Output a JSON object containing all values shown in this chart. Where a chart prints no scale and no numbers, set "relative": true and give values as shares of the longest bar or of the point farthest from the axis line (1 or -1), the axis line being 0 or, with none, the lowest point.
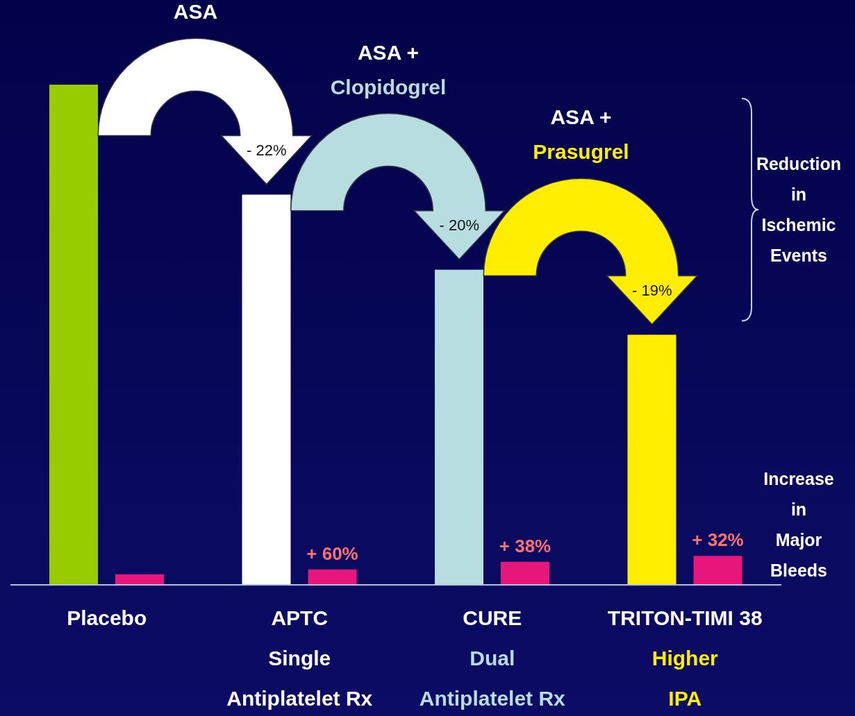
{
  "chart_data": {
    "type": "bar",
    "relative": true,
    "categories": [
      "Placebo",
      "APTC\nSingle\nAntiplatelet Rx",
      "CURE\nDual\nAntiplatelet Rx",
      "TRITON-TIMI 38\nHigher\nIPA"
    ],
    "series": [
      {
        "colors": [
          "#99cc00",
          "#ffffff",
          "#b7dde0",
          "#ffee00"
        ],
        "values": [
          1,
          0.78,
          0.63,
          0.5
        ]
      },
      {
        "color": "#e8157a",
        "values": [
          0.021,
          0.031,
          0.046,
          0.058
        ]
      }
    ],
    "annotations": [
      "ASA",
      "ASA +\nClopidogrel",
      "ASA +\nPrasugrel",
      "- 22%",
      "- 20%",
      "- 19%",
      "+ 60%",
      "+ 38%",
      "+ 32%",
      "Reduction\nin\nIschemic\nEvents",
      "Increase\nin\nMajor\nBleeds"
    ]
  }
}
